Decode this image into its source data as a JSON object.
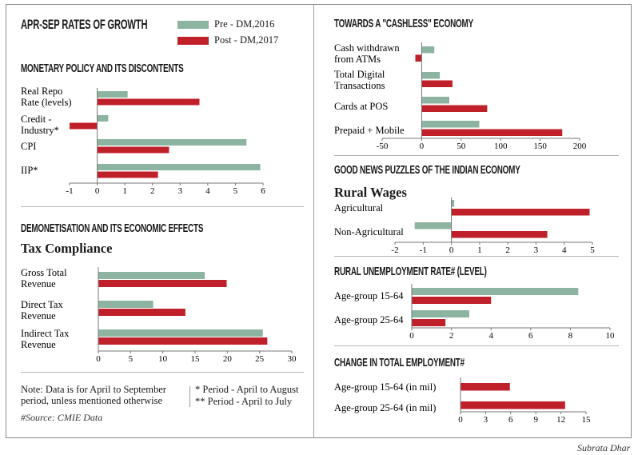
{
  "header": {
    "title": "APR-SEP RATES OF GROWTH"
  },
  "legend": [
    {
      "label": "Pre - DM,2016",
      "color": "#8db4a0"
    },
    {
      "label": "Post - DM,2017",
      "color": "#c0202a"
    }
  ],
  "sections": {
    "monetary": "MONETARY POLICY AND ITS DISCONTENTS",
    "demonetisation": "DEMONETISATION AND ITS ECONOMIC EFFECTS",
    "tax_subtitle": "Tax Compliance",
    "cashless": "TOWARDS A \"CASHLESS\" ECONOMY",
    "goodnews": "GOOD NEWS PUZZLES OF THE INDIAN ECONOMY",
    "wages_subtitle": "Rural Wages",
    "unemployment": "RURAL UNEMPLOYMENT RATE#  (LEVEL)",
    "employment": "CHANGE IN TOTAL EMPLOYMENT#"
  },
  "notes": {
    "note_line1": "Note: Data is for April to September",
    "note_line2": "period, unless mentioned otherwise",
    "footnote1": "* Period - April to August",
    "footnote2": "** Period - April to July",
    "source": "#Source: CMIE Data",
    "credit": "Subrata Dhar"
  },
  "chart_data": [
    {
      "type": "bar",
      "id": "monetary",
      "title": "MONETARY POLICY AND ITS DISCONTENTS",
      "categories": [
        [
          "Real Repo",
          "Rate (levels)"
        ],
        [
          "Credit -",
          "Industry*"
        ],
        [
          "CPI"
        ],
        [
          "IIP*"
        ]
      ],
      "series": [
        {
          "name": "Pre - DM,2016",
          "values": [
            1.1,
            0.4,
            5.4,
            5.9
          ]
        },
        {
          "name": "Post - DM,2017",
          "values": [
            3.7,
            -1.0,
            2.6,
            2.2
          ]
        }
      ],
      "xlim": [
        -1,
        6
      ],
      "ticks": [
        -1,
        0,
        1,
        2,
        3,
        4,
        5,
        6
      ]
    },
    {
      "type": "bar",
      "id": "tax",
      "title": "Tax Compliance",
      "categories": [
        [
          "Gross Total",
          "Revenue"
        ],
        [
          "Direct Tax",
          "Revenue"
        ],
        [
          "Indirect Tax",
          "Revenue"
        ]
      ],
      "series": [
        {
          "name": "Pre - DM,2016",
          "values": [
            16.5,
            8.5,
            25.5
          ]
        },
        {
          "name": "Post - DM,2017",
          "values": [
            19.9,
            13.5,
            26.2
          ]
        }
      ],
      "xlim": [
        0,
        30
      ],
      "ticks": [
        0,
        5,
        10,
        15,
        20,
        25,
        30
      ]
    },
    {
      "type": "bar",
      "id": "cashless",
      "title": "TOWARDS A \"CASHLESS\" ECONOMY",
      "categories": [
        [
          "Cash withdrawn",
          "from ATMs"
        ],
        [
          "Total Digital",
          "Transactions"
        ],
        [
          "Cards at POS"
        ],
        [
          "Prepaid + Mobile"
        ]
      ],
      "series": [
        {
          "name": "Pre - DM,2016",
          "values": [
            16,
            23,
            35,
            73
          ]
        },
        {
          "name": "Post - DM,2017",
          "values": [
            -8,
            39,
            83,
            178
          ]
        }
      ],
      "xlim": [
        -50,
        200
      ],
      "ticks": [
        -50,
        0,
        50,
        100,
        150,
        200
      ]
    },
    {
      "type": "bar",
      "id": "wages",
      "title": "Rural Wages",
      "categories": [
        [
          "Agricultural"
        ],
        [
          "Non-Agricultural"
        ]
      ],
      "series": [
        {
          "name": "Pre - DM,2016",
          "values": [
            0.1,
            -1.3
          ]
        },
        {
          "name": "Post - DM,2017",
          "values": [
            4.9,
            3.4
          ]
        }
      ],
      "xlim": [
        -2,
        5
      ],
      "ticks": [
        -2,
        -1,
        0,
        1,
        2,
        3,
        4,
        5
      ]
    },
    {
      "type": "bar",
      "id": "unemployment",
      "title": "RURAL UNEMPLOYMENT RATE#  (LEVEL)",
      "categories": [
        [
          "Age-group 15-64"
        ],
        [
          "Age-group 25-64"
        ]
      ],
      "series": [
        {
          "name": "Pre - DM,2016",
          "values": [
            8.4,
            2.9
          ]
        },
        {
          "name": "Post - DM,2017",
          "values": [
            4.0,
            1.7
          ]
        }
      ],
      "xlim": [
        0,
        10
      ],
      "ticks": [
        0,
        2,
        4,
        6,
        8,
        10
      ]
    },
    {
      "type": "bar",
      "id": "employment",
      "title": "CHANGE IN TOTAL EMPLOYMENT#",
      "categories": [
        [
          "Age-group 15-64 (in mil)"
        ],
        [
          "Age-group 25-64 (in mil)"
        ]
      ],
      "series": [
        {
          "name": "Post - DM,2017",
          "values": [
            5.9,
            12.5
          ]
        }
      ],
      "xlim": [
        0,
        15
      ],
      "ticks": [
        0,
        3,
        6,
        9,
        12,
        15
      ]
    }
  ]
}
